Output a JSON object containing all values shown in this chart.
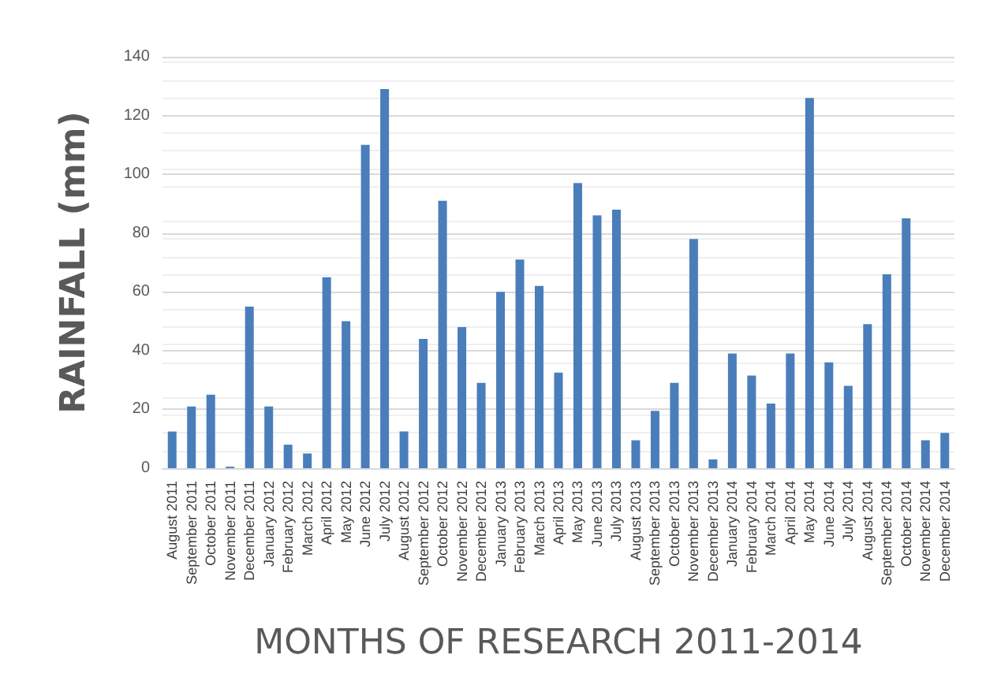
{
  "chart_data": {
    "type": "bar",
    "xlabel": "MONTHS OF RESEARCH 2011-2014",
    "ylabel": "RAINFALL (mm)",
    "categories": [
      "August 2011",
      "September 2011",
      "October 2011",
      "November 2011",
      "December 2011",
      "January 2012",
      "February 2012",
      "March 2012",
      "April 2012",
      "May 2012",
      "June 2012",
      "July 2012",
      "August 2012",
      "September 2012",
      "October 2012",
      "November 2012",
      "December 2012",
      "January 2013",
      "February 2013",
      "March 2013",
      "April 2013",
      "May 2013",
      "June 2013",
      "July 2013",
      "August 2013",
      "September 2013",
      "October 2013",
      "November 2013",
      "December 2013",
      "January 2014",
      "February 2014",
      "March 2014",
      "April 2014",
      "May 2014",
      "June 2014",
      "July 2014",
      "August 2014",
      "September 2014",
      "October 2014",
      "November 2014",
      "December 2014"
    ],
    "values": [
      12.5,
      21,
      25,
      0.5,
      55,
      21,
      8,
      5,
      65,
      50,
      110,
      129,
      12.5,
      44,
      91,
      48,
      29,
      60,
      71,
      62,
      32.5,
      97,
      86,
      88,
      9.5,
      19.5,
      29,
      78,
      3,
      39,
      31.5,
      22,
      39,
      126,
      36,
      28,
      49,
      66,
      85,
      9.5,
      12
    ],
    "color": "#4a7ebb",
    "ylim": [
      0,
      140
    ],
    "yticks": [
      0,
      20,
      40,
      60,
      80,
      100,
      120,
      140
    ],
    "grid": true
  }
}
